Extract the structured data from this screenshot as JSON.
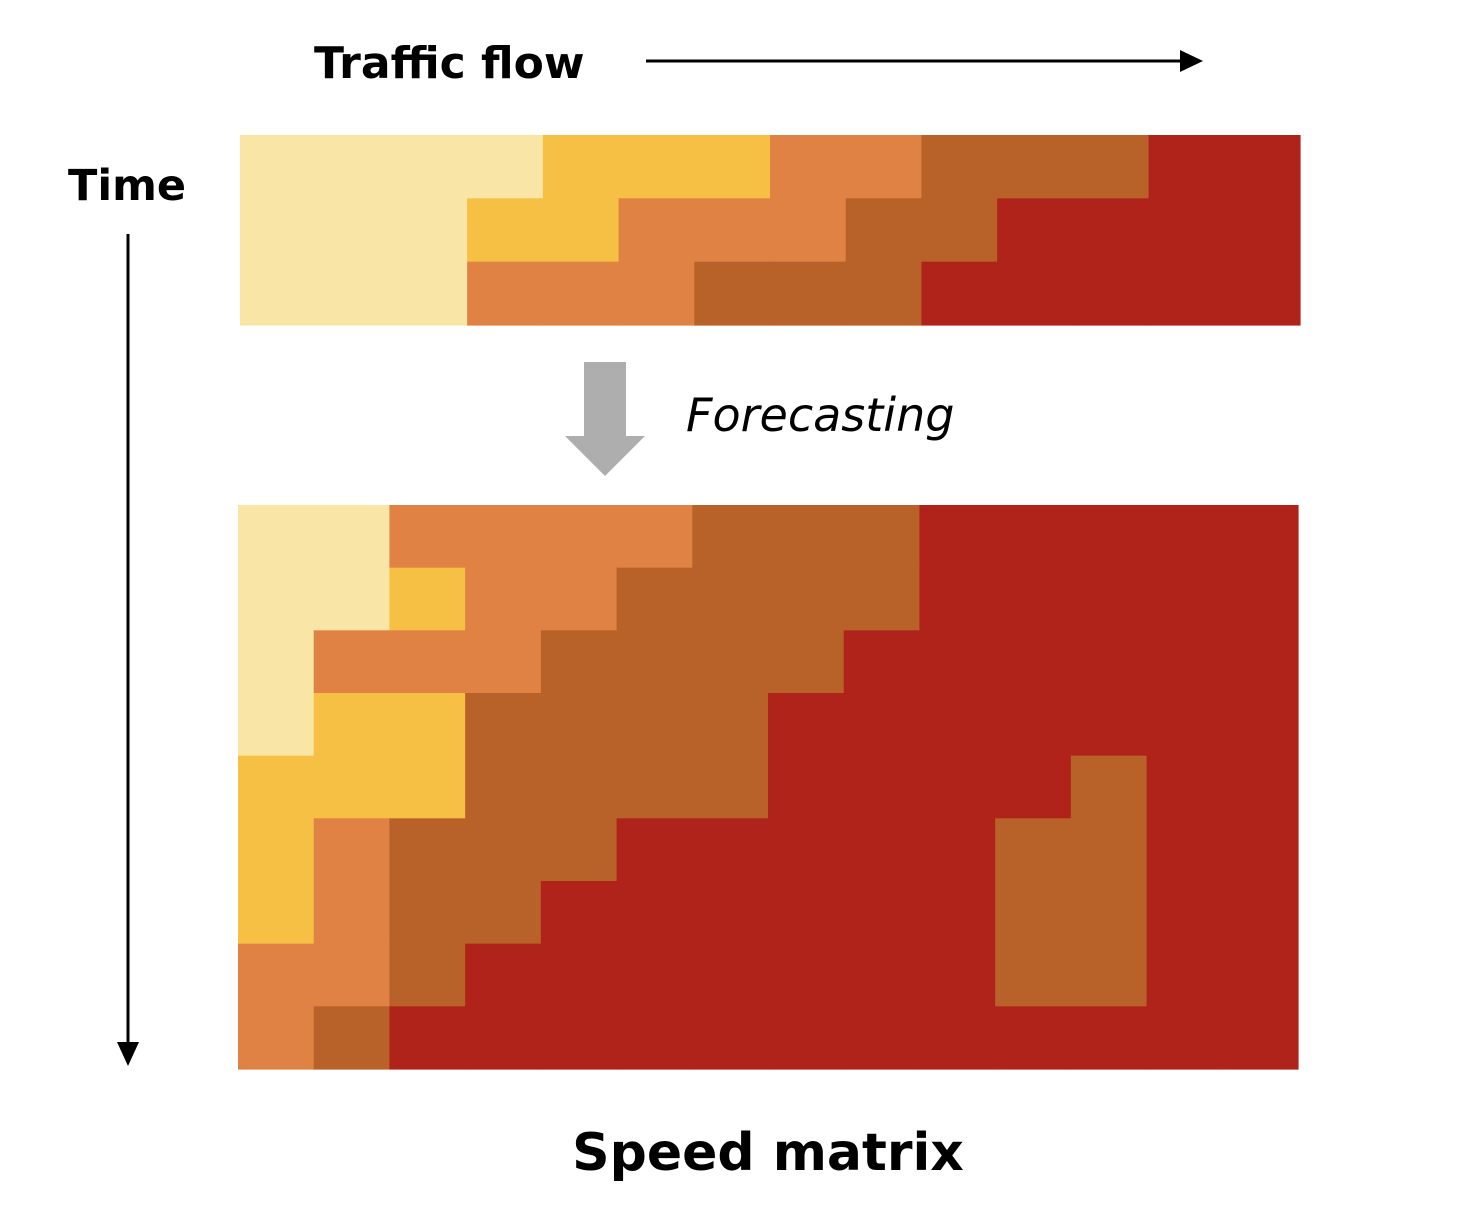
{
  "labels": {
    "traffic_flow": "Traffic flow",
    "time": "Time",
    "forecasting": "Forecasting",
    "speed_matrix": "Speed matrix"
  },
  "colors": {
    "level_1": "#F9E5A5",
    "level_2": "#F5C044",
    "level_3": "#E08243",
    "level_4": "#B8622A",
    "level_5": "#B0231A",
    "arrow_gray": "#AEAEAE",
    "axis_arrow": "#000000"
  },
  "input_matrix": [
    [
      1,
      1,
      1,
      1,
      2,
      2,
      2,
      3,
      3,
      4,
      4,
      4,
      5,
      5
    ],
    [
      1,
      1,
      1,
      2,
      2,
      3,
      3,
      3,
      4,
      4,
      5,
      5,
      5,
      5
    ],
    [
      1,
      1,
      1,
      3,
      3,
      3,
      4,
      4,
      4,
      5,
      5,
      5,
      5,
      5
    ]
  ],
  "output_matrix": [
    [
      1,
      1,
      3,
      3,
      3,
      3,
      4,
      4,
      4,
      5,
      5,
      5,
      5,
      5
    ],
    [
      1,
      1,
      2,
      3,
      3,
      4,
      4,
      4,
      4,
      5,
      5,
      5,
      5,
      5
    ],
    [
      1,
      3,
      3,
      3,
      4,
      4,
      4,
      4,
      5,
      5,
      5,
      5,
      5,
      5
    ],
    [
      1,
      2,
      2,
      4,
      4,
      4,
      4,
      5,
      5,
      5,
      5,
      5,
      5,
      5
    ],
    [
      2,
      2,
      2,
      4,
      4,
      4,
      4,
      5,
      5,
      5,
      5,
      4,
      5,
      5
    ],
    [
      2,
      3,
      4,
      4,
      4,
      5,
      5,
      5,
      5,
      5,
      4,
      4,
      5,
      5
    ],
    [
      2,
      3,
      4,
      4,
      5,
      5,
      5,
      5,
      5,
      5,
      4,
      4,
      5,
      5
    ],
    [
      3,
      3,
      4,
      5,
      5,
      5,
      5,
      5,
      5,
      5,
      4,
      4,
      5,
      5
    ],
    [
      3,
      4,
      5,
      5,
      5,
      5,
      5,
      5,
      5,
      5,
      5,
      5,
      5,
      5
    ]
  ]
}
